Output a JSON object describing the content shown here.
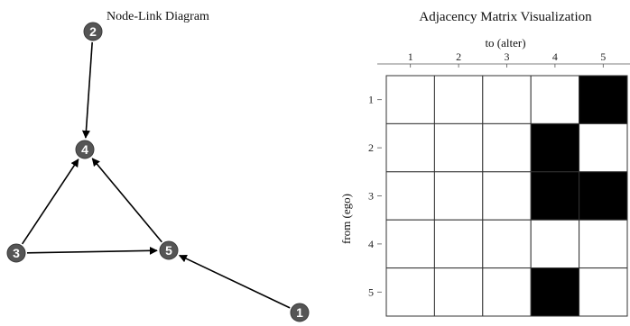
{
  "left_panel": {
    "title": "Node-Link Diagram",
    "nodes": [
      {
        "id": "1",
        "label": "1"
      },
      {
        "id": "2",
        "label": "2"
      },
      {
        "id": "3",
        "label": "3"
      },
      {
        "id": "4",
        "label": "4"
      },
      {
        "id": "5",
        "label": "5"
      }
    ],
    "edges": [
      {
        "from": "2",
        "to": "4"
      },
      {
        "from": "3",
        "to": "4"
      },
      {
        "from": "5",
        "to": "4"
      },
      {
        "from": "3",
        "to": "5"
      },
      {
        "from": "1",
        "to": "5"
      }
    ]
  },
  "right_panel": {
    "title": "Adjacency Matrix Visualization",
    "column_axis_label": "to (alter)",
    "row_axis_label": "from (ego)",
    "column_labels": [
      "1",
      "2",
      "3",
      "4",
      "5"
    ],
    "row_labels": [
      "1",
      "2",
      "3",
      "4",
      "5"
    ],
    "matrix": [
      [
        0,
        0,
        0,
        0,
        1
      ],
      [
        0,
        0,
        0,
        1,
        0
      ],
      [
        0,
        0,
        0,
        1,
        1
      ],
      [
        0,
        0,
        0,
        0,
        0
      ],
      [
        0,
        0,
        0,
        1,
        0
      ]
    ],
    "filled_color": "#000000",
    "empty_color": "#ffffff"
  },
  "colors": {
    "node_fill": "#555555",
    "node_text": "#ffffff",
    "edge": "#000000",
    "grid": "#333333"
  }
}
